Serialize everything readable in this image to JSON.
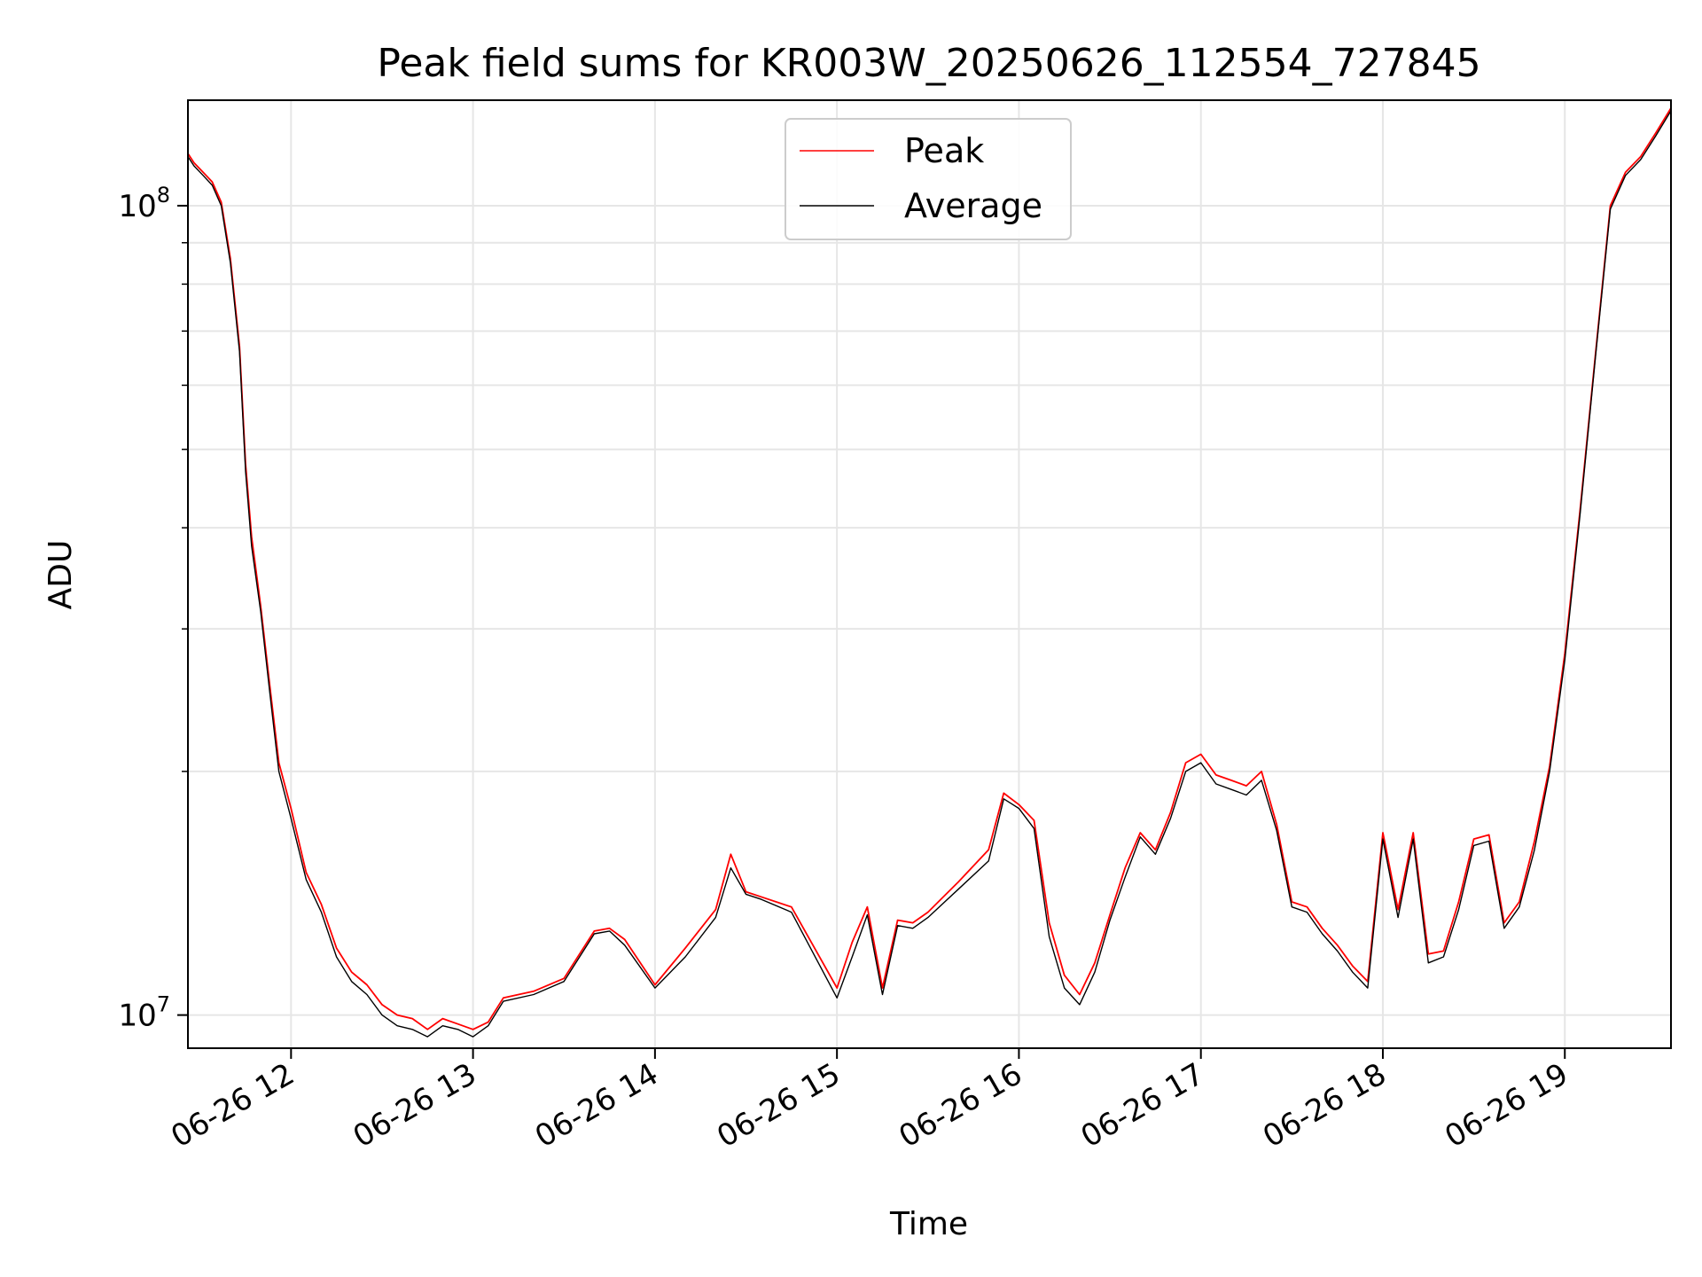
{
  "chart_data": {
    "type": "line",
    "title": "Peak field sums for KR003W_20250626_112554_727845",
    "xlabel": "Time",
    "ylabel": "ADU",
    "yscale": "log",
    "ylim": [
      9100000,
      135000000
    ],
    "xlim": [
      "2025-06-26 11:26",
      "2025-06-26 19:35"
    ],
    "grid": true,
    "legend_position": "upper center",
    "x_ticks": [
      {
        "value": "2025-06-26 12:00",
        "label": "06-26 12"
      },
      {
        "value": "2025-06-26 13:00",
        "label": "06-26 13"
      },
      {
        "value": "2025-06-26 14:00",
        "label": "06-26 14"
      },
      {
        "value": "2025-06-26 15:00",
        "label": "06-26 15"
      },
      {
        "value": "2025-06-26 16:00",
        "label": "06-26 16"
      },
      {
        "value": "2025-06-26 17:00",
        "label": "06-26 17"
      },
      {
        "value": "2025-06-26 18:00",
        "label": "06-26 18"
      },
      {
        "value": "2025-06-26 19:00",
        "label": "06-26 19"
      }
    ],
    "y_major_ticks": [
      {
        "value": 10000000,
        "base": "10",
        "exp": "7"
      },
      {
        "value": 100000000,
        "base": "10",
        "exp": "8"
      }
    ],
    "y_minor_ticks": [
      20000000,
      30000000,
      40000000,
      50000000,
      60000000,
      70000000,
      80000000,
      90000000
    ],
    "x": [
      "11:26",
      "11:28",
      "11:31",
      "11:34",
      "11:37",
      "11:40",
      "11:43",
      "11:45",
      "11:47",
      "11:50",
      "11:53",
      "11:56",
      "12:00",
      "12:05",
      "12:10",
      "12:15",
      "12:20",
      "12:25",
      "12:30",
      "12:35",
      "12:40",
      "12:45",
      "12:50",
      "12:55",
      "13:00",
      "13:05",
      "13:10",
      "13:20",
      "13:30",
      "13:40",
      "13:45",
      "13:50",
      "14:00",
      "14:10",
      "14:20",
      "14:25",
      "14:30",
      "14:35",
      "14:45",
      "15:00",
      "15:05",
      "15:10",
      "15:15",
      "15:20",
      "15:25",
      "15:30",
      "15:40",
      "15:50",
      "15:55",
      "16:00",
      "16:05",
      "16:10",
      "16:15",
      "16:20",
      "16:25",
      "16:30",
      "16:35",
      "16:40",
      "16:45",
      "16:50",
      "16:55",
      "17:00",
      "17:05",
      "17:10",
      "17:15",
      "17:20",
      "17:25",
      "17:30",
      "17:35",
      "17:40",
      "17:45",
      "17:50",
      "17:55",
      "18:00",
      "18:05",
      "18:10",
      "18:15",
      "18:20",
      "18:25",
      "18:30",
      "18:35",
      "18:40",
      "18:45",
      "18:50",
      "18:55",
      "19:00",
      "19:05",
      "19:10",
      "19:15",
      "19:20",
      "19:25",
      "19:30",
      "19:35"
    ],
    "series": [
      {
        "name": "Peak",
        "color": "#ff0000",
        "values": [
          116000000,
          113000000,
          110000000,
          107000000,
          101000000,
          86000000,
          67000000,
          48000000,
          39000000,
          32000000,
          25500000,
          20500000,
          18000000,
          15000000,
          13700000,
          12100000,
          11300000,
          10900000,
          10300000,
          10000000,
          9900000,
          9600000,
          9900000,
          9750000,
          9600000,
          9800000,
          10500000,
          10700000,
          11100000,
          12700000,
          12800000,
          12400000,
          10900000,
          12100000,
          13500000,
          15800000,
          14200000,
          14000000,
          13600000,
          10800000,
          12300000,
          13600000,
          10800000,
          13100000,
          13000000,
          13400000,
          14600000,
          16000000,
          18800000,
          18200000,
          17400000,
          13000000,
          11200000,
          10600000,
          11600000,
          13300000,
          15200000,
          16800000,
          16000000,
          17800000,
          20500000,
          21000000,
          19800000,
          19500000,
          19200000,
          20000000,
          17200000,
          13800000,
          13600000,
          12800000,
          12200000,
          11500000,
          11000000,
          16800000,
          13500000,
          16800000,
          11900000,
          12000000,
          13800000,
          16500000,
          16700000,
          13000000,
          13800000,
          16400000,
          20300000,
          28000000,
          42000000,
          65000000,
          100000000,
          110000000,
          115000000,
          123000000,
          132000000
        ]
      },
      {
        "name": "Average",
        "color": "#000000",
        "values": [
          115000000,
          112000000,
          109000000,
          106000000,
          100000000,
          85000000,
          66000000,
          47000000,
          38000000,
          31500000,
          25000000,
          20000000,
          17500000,
          14700000,
          13400000,
          11800000,
          11000000,
          10600000,
          10000000,
          9700000,
          9600000,
          9400000,
          9700000,
          9600000,
          9400000,
          9700000,
          10400000,
          10600000,
          11000000,
          12600000,
          12700000,
          12200000,
          10800000,
          11800000,
          13200000,
          15200000,
          14100000,
          13900000,
          13400000,
          10500000,
          11800000,
          13300000,
          10600000,
          12900000,
          12800000,
          13200000,
          14300000,
          15500000,
          18500000,
          18000000,
          17000000,
          12500000,
          10800000,
          10300000,
          11300000,
          13100000,
          14800000,
          16600000,
          15800000,
          17500000,
          20000000,
          20500000,
          19300000,
          19000000,
          18700000,
          19500000,
          16900000,
          13600000,
          13400000,
          12600000,
          12000000,
          11300000,
          10800000,
          16500000,
          13200000,
          16500000,
          11600000,
          11800000,
          13500000,
          16200000,
          16400000,
          12800000,
          13600000,
          16000000,
          20000000,
          27500000,
          41500000,
          64500000,
          99000000,
          109000000,
          114000000,
          122000000,
          131000000
        ]
      }
    ]
  }
}
